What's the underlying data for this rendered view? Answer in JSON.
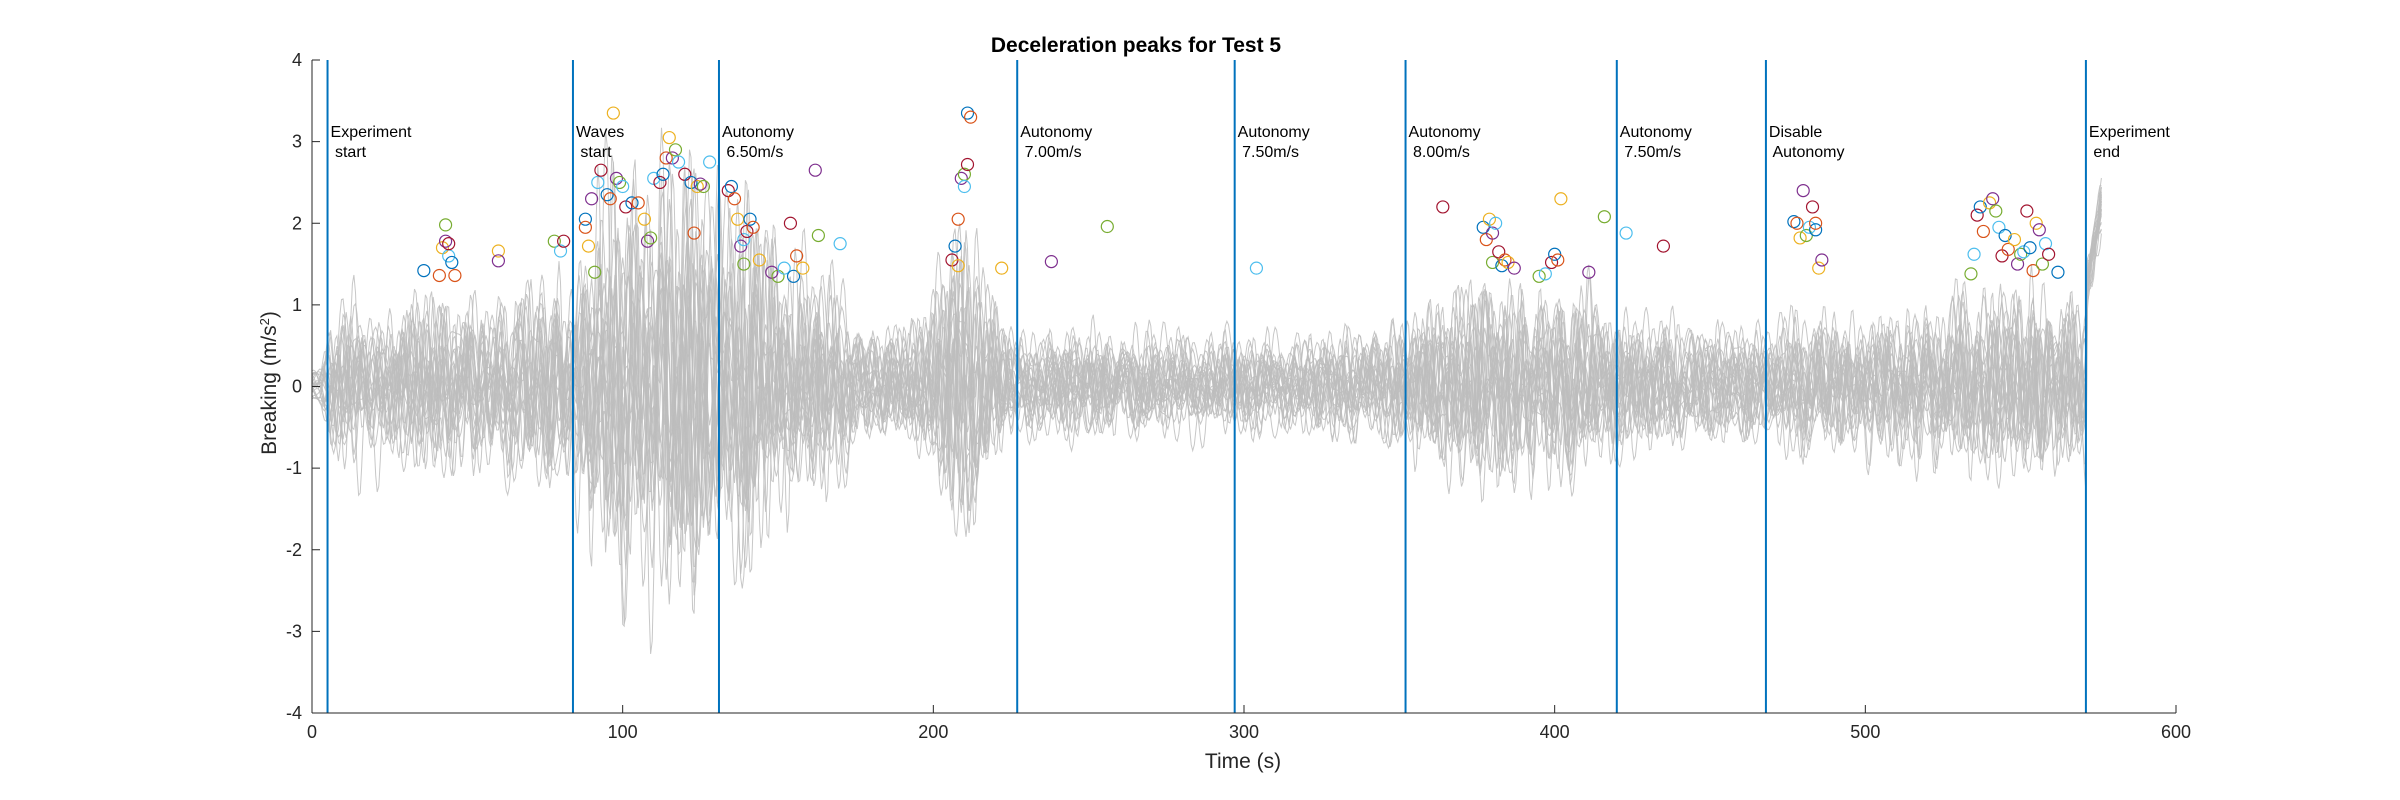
{
  "chart_data": {
    "type": "line",
    "title": "Deceleration peaks for Test 5",
    "xlabel": "Time (s)",
    "ylabel_main": "Breaking (m/s",
    "ylabel_sup": "2",
    "ylabel_end": ")",
    "xlim": [
      0,
      600
    ],
    "ylim": [
      -4,
      4
    ],
    "xticks": [
      0,
      100,
      200,
      300,
      400,
      500,
      600
    ],
    "yticks": [
      -4,
      -3,
      -2,
      -1,
      0,
      1,
      2,
      3,
      4
    ],
    "grid": false,
    "trace_color": "#bdbdbd",
    "event_line_color": "#0072bd",
    "trace_count": 24,
    "trace_time_range": [
      0,
      576
    ],
    "events": [
      {
        "x": 5,
        "line1": "Experiment",
        "line2": " start"
      },
      {
        "x": 84,
        "line1": "Waves",
        "line2": " start"
      },
      {
        "x": 131,
        "line1": "Autonomy",
        "line2": " 6.50m/s"
      },
      {
        "x": 227,
        "line1": "Autonomy",
        "line2": " 7.00m/s"
      },
      {
        "x": 297,
        "line1": "Autonomy",
        "line2": " 7.50m/s"
      },
      {
        "x": 352,
        "line1": "Autonomy",
        "line2": " 8.00m/s"
      },
      {
        "x": 420,
        "line1": "Autonomy",
        "line2": " 7.50m/s"
      },
      {
        "x": 468,
        "line1": "Disable",
        "line2": " Autonomy"
      },
      {
        "x": 571,
        "line1": "Experiment",
        "line2": " end"
      }
    ],
    "peak_colors": [
      "#0072bd",
      "#d95319",
      "#edb120",
      "#7e2f8e",
      "#77ac30",
      "#4dbeee",
      "#a2142f"
    ],
    "peaks": [
      [
        36,
        1.42
      ],
      [
        41,
        1.36
      ],
      [
        42,
        1.7
      ],
      [
        43,
        1.78
      ],
      [
        43,
        1.98
      ],
      [
        44,
        1.6
      ],
      [
        44,
        1.75
      ],
      [
        45,
        1.52
      ],
      [
        46,
        1.36
      ],
      [
        60,
        1.66
      ],
      [
        60,
        1.54
      ],
      [
        78,
        1.78
      ],
      [
        80,
        1.66
      ],
      [
        81,
        1.78
      ],
      [
        88,
        2.05
      ],
      [
        88,
        1.95
      ],
      [
        89,
        1.72
      ],
      [
        90,
        2.3
      ],
      [
        91,
        1.4
      ],
      [
        92,
        2.5
      ],
      [
        93,
        2.65
      ],
      [
        95,
        2.35
      ],
      [
        96,
        2.3
      ],
      [
        97,
        3.35
      ],
      [
        98,
        2.55
      ],
      [
        99,
        2.5
      ],
      [
        100,
        2.45
      ],
      [
        101,
        2.2
      ],
      [
        103,
        2.25
      ],
      [
        105,
        2.25
      ],
      [
        107,
        2.05
      ],
      [
        108,
        1.78
      ],
      [
        109,
        1.82
      ],
      [
        110,
        2.55
      ],
      [
        112,
        2.5
      ],
      [
        113,
        2.6
      ],
      [
        114,
        2.8
      ],
      [
        115,
        3.05
      ],
      [
        116,
        2.8
      ],
      [
        117,
        2.9
      ],
      [
        118,
        2.75
      ],
      [
        120,
        2.6
      ],
      [
        122,
        2.5
      ],
      [
        123,
        1.88
      ],
      [
        124,
        2.45
      ],
      [
        125,
        2.48
      ],
      [
        126,
        2.45
      ],
      [
        128,
        2.75
      ],
      [
        134,
        2.4
      ],
      [
        135,
        2.45
      ],
      [
        136,
        2.3
      ],
      [
        137,
        2.05
      ],
      [
        138,
        1.72
      ],
      [
        139,
        1.5
      ],
      [
        139,
        1.8
      ],
      [
        140,
        1.9
      ],
      [
        141,
        2.05
      ],
      [
        142,
        1.95
      ],
      [
        144,
        1.55
      ],
      [
        148,
        1.4
      ],
      [
        150,
        1.35
      ],
      [
        152,
        1.45
      ],
      [
        154,
        2.0
      ],
      [
        155,
        1.35
      ],
      [
        156,
        1.6
      ],
      [
        158,
        1.45
      ],
      [
        162,
        2.65
      ],
      [
        163,
        1.85
      ],
      [
        170,
        1.75
      ],
      [
        206,
        1.55
      ],
      [
        207,
        1.72
      ],
      [
        208,
        2.05
      ],
      [
        208,
        1.48
      ],
      [
        209,
        2.55
      ],
      [
        210,
        2.6
      ],
      [
        210,
        2.45
      ],
      [
        211,
        2.72
      ],
      [
        211,
        3.35
      ],
      [
        212,
        3.3
      ],
      [
        222,
        1.45
      ],
      [
        238,
        1.53
      ],
      [
        256,
        1.96
      ],
      [
        304,
        1.45
      ],
      [
        364,
        2.2
      ],
      [
        377,
        1.95
      ],
      [
        378,
        1.8
      ],
      [
        379,
        2.05
      ],
      [
        380,
        1.88
      ],
      [
        380,
        1.52
      ],
      [
        381,
        2.0
      ],
      [
        382,
        1.65
      ],
      [
        383,
        1.48
      ],
      [
        384,
        1.55
      ],
      [
        385,
        1.52
      ],
      [
        387,
        1.45
      ],
      [
        395,
        1.35
      ],
      [
        397,
        1.38
      ],
      [
        399,
        1.52
      ],
      [
        400,
        1.62
      ],
      [
        401,
        1.55
      ],
      [
        402,
        2.3
      ],
      [
        411,
        1.4
      ],
      [
        416,
        2.08
      ],
      [
        423,
        1.88
      ],
      [
        435,
        1.72
      ],
      [
        477,
        2.02
      ],
      [
        478,
        2.0
      ],
      [
        479,
        1.82
      ],
      [
        480,
        2.4
      ],
      [
        481,
        1.85
      ],
      [
        482,
        1.95
      ],
      [
        483,
        2.2
      ],
      [
        484,
        1.92
      ],
      [
        484,
        2.0
      ],
      [
        485,
        1.45
      ],
      [
        486,
        1.55
      ],
      [
        534,
        1.38
      ],
      [
        535,
        1.62
      ],
      [
        536,
        2.1
      ],
      [
        537,
        2.2
      ],
      [
        538,
        1.9
      ],
      [
        540,
        2.25
      ],
      [
        541,
        2.3
      ],
      [
        542,
        2.15
      ],
      [
        543,
        1.95
      ],
      [
        544,
        1.6
      ],
      [
        545,
        1.85
      ],
      [
        546,
        1.68
      ],
      [
        548,
        1.8
      ],
      [
        549,
        1.5
      ],
      [
        550,
        1.62
      ],
      [
        551,
        1.65
      ],
      [
        552,
        2.15
      ],
      [
        553,
        1.7
      ],
      [
        554,
        1.42
      ],
      [
        555,
        2.0
      ],
      [
        556,
        1.92
      ],
      [
        557,
        1.5
      ],
      [
        558,
        1.75
      ],
      [
        559,
        1.62
      ],
      [
        562,
        1.4
      ]
    ]
  }
}
